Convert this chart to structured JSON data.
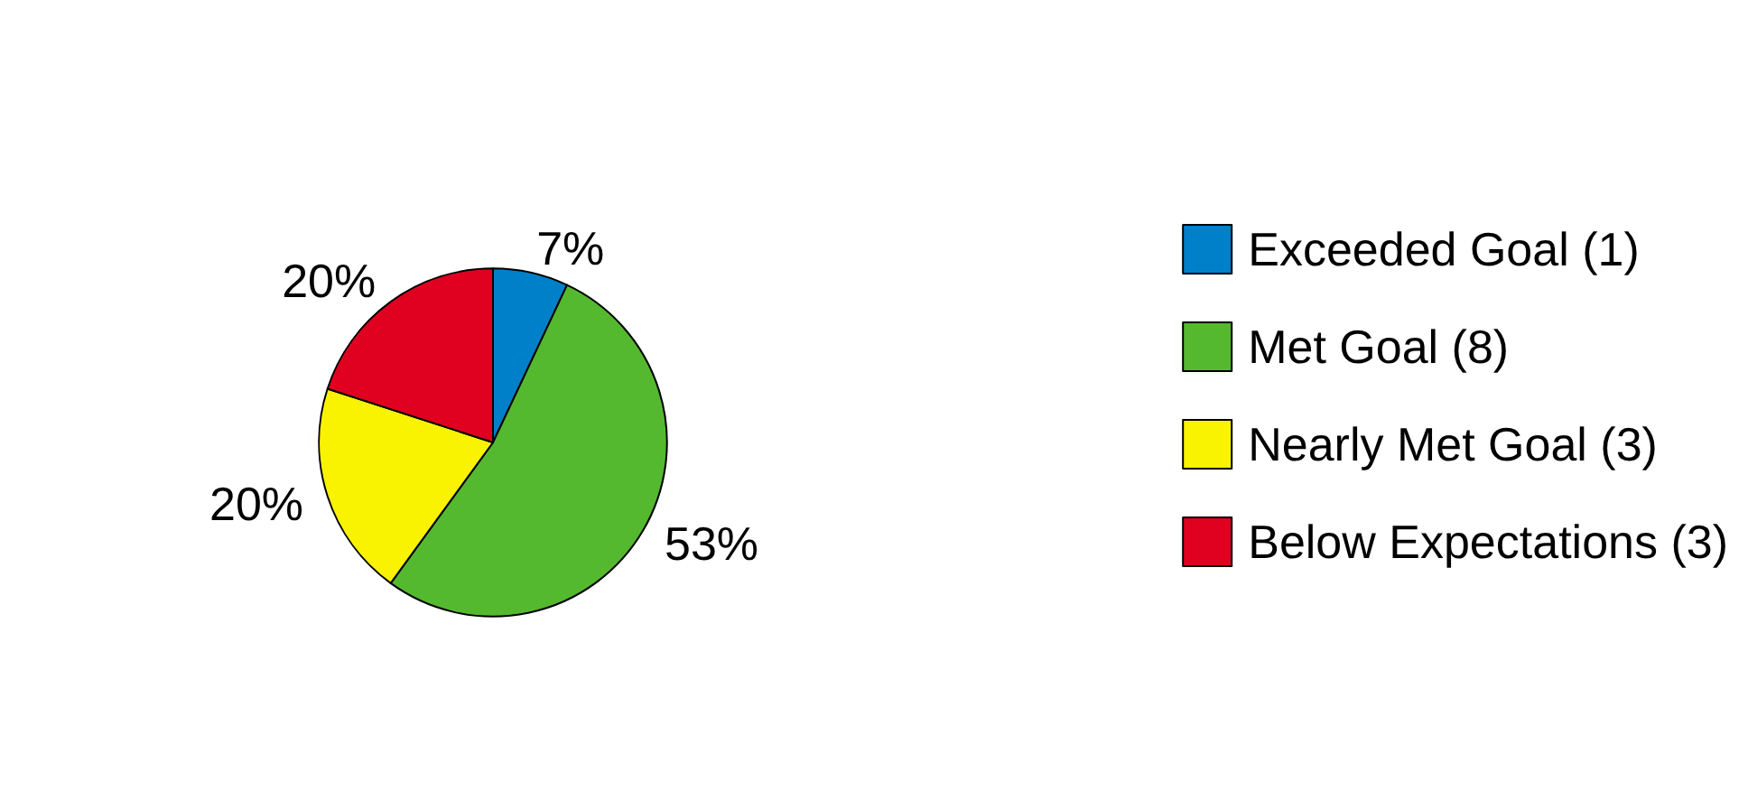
{
  "chart_data": {
    "type": "pie",
    "categories": [
      "Exceeded Goal (1)",
      "Met Goal (8)",
      "Nearly Met Goal (3)",
      "Below Expectations (3)"
    ],
    "values": [
      7,
      53,
      20,
      20
    ],
    "colors": [
      "#0080c8",
      "#55b92f",
      "#f9f200",
      "#e00020"
    ],
    "value_labels": [
      "7%",
      "53%",
      "20%",
      "20%"
    ],
    "legend": "right"
  }
}
